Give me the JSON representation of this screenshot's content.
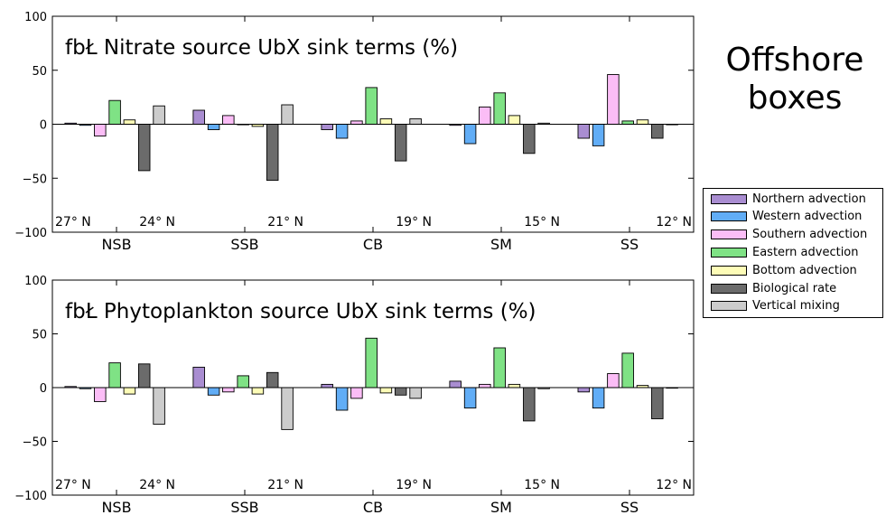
{
  "figure_label_lines": [
    "Offshore",
    "boxes"
  ],
  "legend": {
    "items": [
      {
        "name": "Northern advection",
        "color": "#a98dd1"
      },
      {
        "name": "Western advection",
        "color": "#61adf6"
      },
      {
        "name": "Southern advection",
        "color": "#fbbdf6"
      },
      {
        "name": "Eastern advection",
        "color": "#7fe285"
      },
      {
        "name": "Bottom advection",
        "color": "#fdfcb7"
      },
      {
        "name": "Biological rate",
        "color": "#6b6b6b"
      },
      {
        "name": "Vertical mixing",
        "color": "#cccccc"
      }
    ]
  },
  "chart_data": [
    {
      "type": "bar",
      "title": "fbŁ Nitrate source UbX sink terms (%)",
      "categories": [
        "NSB",
        "SSB",
        "CB",
        "SM",
        "SS"
      ],
      "latitude_labels": [
        "27° N",
        "24° N",
        "21° N",
        "19° N",
        "15° N",
        "12° N"
      ],
      "ylim": [
        -100,
        100
      ],
      "yticks": [
        "100",
        "50",
        "0",
        "−50",
        "−100"
      ],
      "series": [
        {
          "name": "Northern advection",
          "values": [
            1,
            13,
            -5,
            -1,
            -13
          ]
        },
        {
          "name": "Western advection",
          "values": [
            -1,
            -5,
            -13,
            -18,
            -20
          ]
        },
        {
          "name": "Southern advection",
          "values": [
            -11,
            8,
            3,
            16,
            46
          ]
        },
        {
          "name": "Eastern advection",
          "values": [
            22,
            0,
            34,
            29,
            3
          ]
        },
        {
          "name": "Bottom advection",
          "values": [
            4,
            -2,
            5,
            8,
            4
          ]
        },
        {
          "name": "Biological rate",
          "values": [
            -43,
            -52,
            -34,
            -27,
            -13
          ]
        },
        {
          "name": "Vertical mixing",
          "values": [
            17,
            18,
            5,
            1,
            0
          ]
        }
      ]
    },
    {
      "type": "bar",
      "title": "fbŁ Phytoplankton source UbX sink terms (%)",
      "categories": [
        "NSB",
        "SSB",
        "CB",
        "SM",
        "SS"
      ],
      "latitude_labels": [
        "27° N",
        "24° N",
        "21° N",
        "19° N",
        "15° N",
        "12° N"
      ],
      "ylim": [
        -100,
        100
      ],
      "yticks": [
        "100",
        "50",
        "0",
        "−50",
        "−100"
      ],
      "series": [
        {
          "name": "Northern advection",
          "values": [
            1,
            19,
            3,
            6,
            -4
          ]
        },
        {
          "name": "Western advection",
          "values": [
            -1,
            -7,
            -21,
            -19,
            -19
          ]
        },
        {
          "name": "Southern advection",
          "values": [
            -13,
            -4,
            -10,
            3,
            13
          ]
        },
        {
          "name": "Eastern advection",
          "values": [
            23,
            11,
            46,
            37,
            32
          ]
        },
        {
          "name": "Bottom advection",
          "values": [
            -6,
            -6,
            -5,
            3,
            2
          ]
        },
        {
          "name": "Biological rate",
          "values": [
            22,
            14,
            -7,
            -31,
            -29
          ]
        },
        {
          "name": "Vertical mixing",
          "values": [
            -34,
            -39,
            -10,
            -1,
            0
          ]
        }
      ]
    }
  ]
}
